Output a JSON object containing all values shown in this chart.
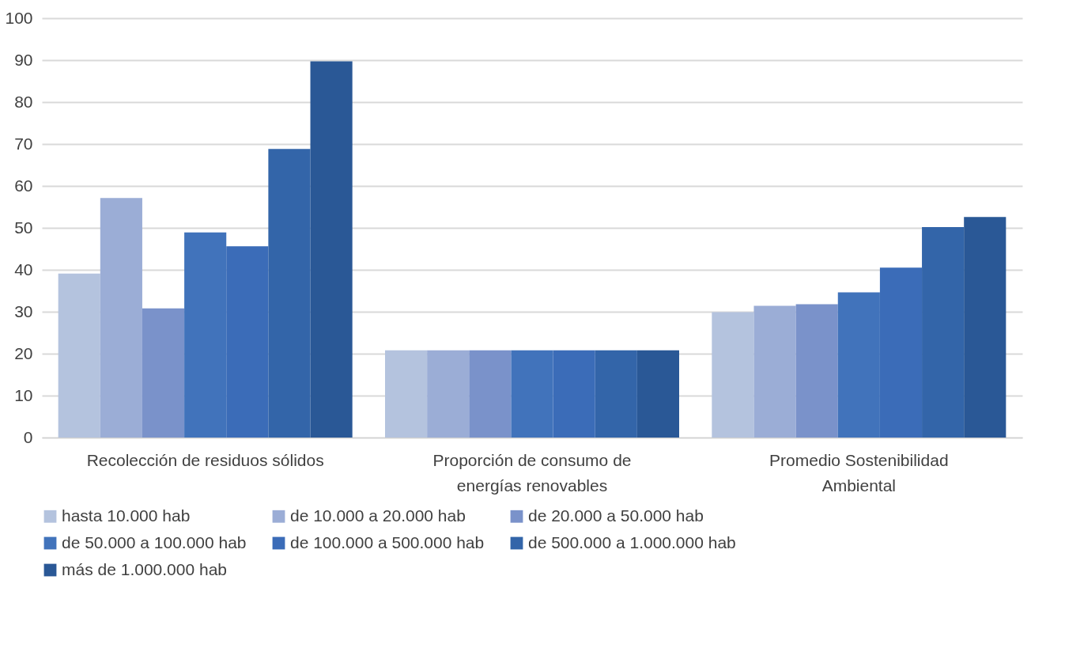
{
  "chart_data": {
    "type": "bar",
    "categories": [
      "Recolección de residuos sólidos",
      "Proporción de consumo de energías renovables",
      "Promedio Sostenibilidad Ambiental"
    ],
    "series": [
      {
        "name": "hasta 10.000 hab",
        "color": "#b4c3de",
        "values": [
          39.1,
          20.8,
          29.9
        ]
      },
      {
        "name": "de 10.000 a 20.000 hab",
        "color": "#9badd6",
        "values": [
          57.1,
          20.8,
          31.4
        ]
      },
      {
        "name": "de 20.000 a 50.000 hab",
        "color": "#7a92ca",
        "values": [
          30.8,
          20.8,
          31.8
        ]
      },
      {
        "name": "de 50.000 a 100.000 hab",
        "color": "#4173bb",
        "values": [
          48.9,
          20.8,
          34.6
        ]
      },
      {
        "name": "de 100.000 a 500.000 hab",
        "color": "#3b6cb8",
        "values": [
          45.6,
          20.8,
          40.5
        ]
      },
      {
        "name": "de 500.000 a 1.000.000 hab",
        "color": "#3365a9",
        "values": [
          68.8,
          20.8,
          50.2
        ]
      },
      {
        "name": "más de 1.000.000 hab",
        "color": "#2a5896",
        "values": [
          89.7,
          20.8,
          52.6
        ]
      }
    ],
    "ylim": [
      0,
      100
    ],
    "yticks": [
      0,
      10,
      20,
      30,
      40,
      50,
      60,
      70,
      80,
      90,
      100
    ],
    "grid": "y",
    "legend": "bottom"
  }
}
